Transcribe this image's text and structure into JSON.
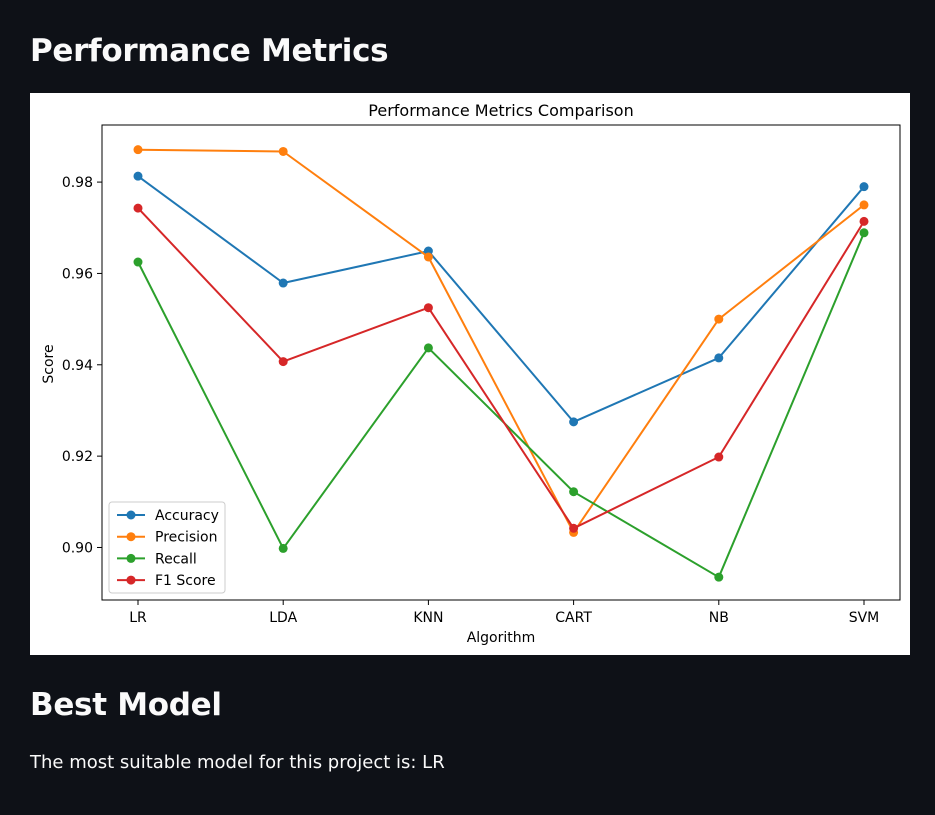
{
  "page": {
    "section_performance_title": "Performance Metrics",
    "section_best_title": "Best Model",
    "best_model_text": "The most suitable model for this project is: LR"
  },
  "chart_data": {
    "type": "line",
    "title": "Performance Metrics Comparison",
    "xlabel": "Algorithm",
    "ylabel": "Score",
    "categories": [
      "LR",
      "LDA",
      "KNN",
      "CART",
      "NB",
      "SVM"
    ],
    "ylim": [
      0.8885,
      0.9925
    ],
    "yticks": [
      0.9,
      0.92,
      0.94,
      0.96,
      0.98
    ],
    "ytick_labels": [
      "0.90",
      "0.92",
      "0.94",
      "0.96",
      "0.98"
    ],
    "grid": false,
    "legend_position": "lower-left",
    "marker": "circle",
    "series": [
      {
        "name": "Accuracy",
        "color": "#1f77b4",
        "values": [
          0.9813,
          0.9579,
          0.9649,
          0.9275,
          0.9415,
          0.979
        ]
      },
      {
        "name": "Precision",
        "color": "#ff7f0e",
        "values": [
          0.9871,
          0.9867,
          0.9636,
          0.9033,
          0.95,
          0.975
        ]
      },
      {
        "name": "Recall",
        "color": "#2ca02c",
        "values": [
          0.9625,
          0.8998,
          0.9437,
          0.9122,
          0.8935,
          0.9689
        ]
      },
      {
        "name": "F1 Score",
        "color": "#d62728",
        "values": [
          0.9743,
          0.9407,
          0.9525,
          0.9042,
          0.9198,
          0.9714
        ]
      }
    ]
  }
}
